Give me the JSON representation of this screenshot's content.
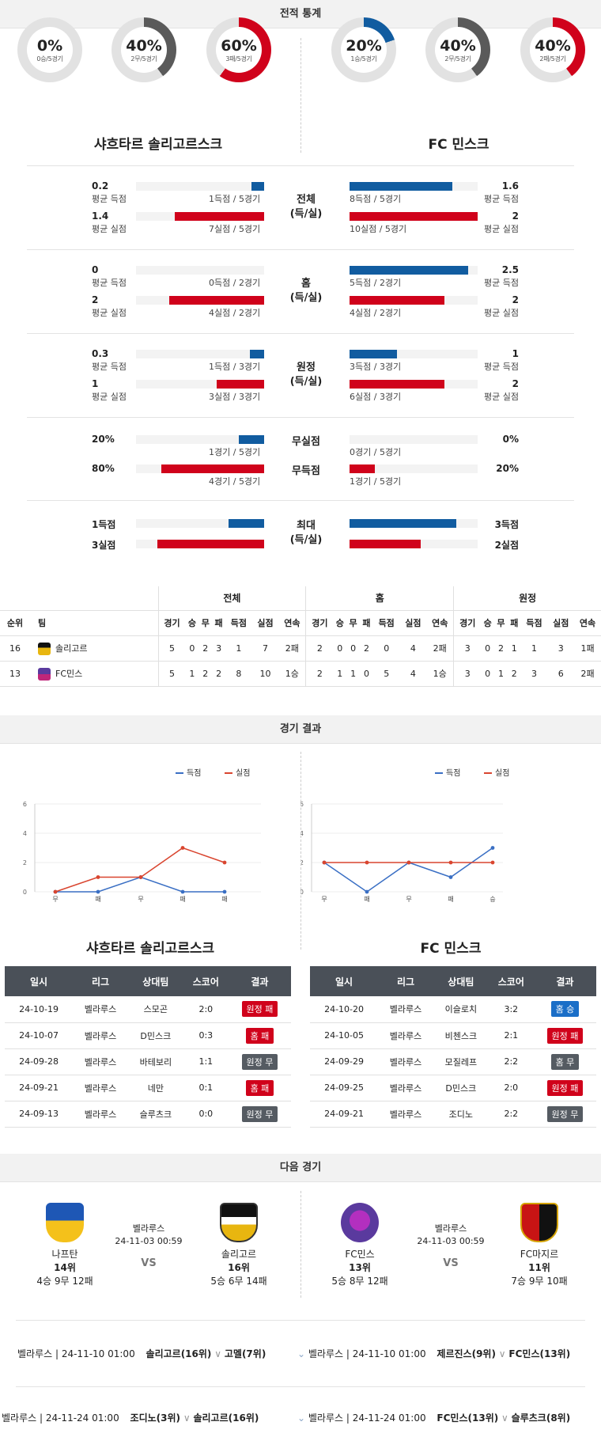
{
  "sections": {
    "stats": "전적 통계",
    "results": "경기 결과",
    "next": "다음 경기"
  },
  "colors": {
    "blue": "#115ca0",
    "red": "#d0021b",
    "gray": "#5a5a5a",
    "track": "#e2e2e2"
  },
  "left_team": {
    "name": "샤흐타르 솔리고르스크",
    "donuts": [
      {
        "pct": "0%",
        "sub": "0승/5경기",
        "value": 0,
        "color": "blue"
      },
      {
        "pct": "40%",
        "sub": "2무/5경기",
        "value": 40,
        "color": "gray"
      },
      {
        "pct": "60%",
        "sub": "3패/5경기",
        "value": 60,
        "color": "red"
      }
    ]
  },
  "right_team": {
    "name": "FC 민스크",
    "donuts": [
      {
        "pct": "20%",
        "sub": "1승/5경기",
        "value": 20,
        "color": "blue"
      },
      {
        "pct": "40%",
        "sub": "2무/5경기",
        "value": 40,
        "color": "gray"
      },
      {
        "pct": "40%",
        "sub": "2패/5경기",
        "value": 40,
        "color": "red"
      }
    ]
  },
  "stat_groups": [
    {
      "cat": "전체",
      "cat2": "(득/실)",
      "rows": [
        {
          "l_num": "0.2",
          "l_lbl": "평균 득점",
          "l_cnt": "1득점 / 5경기",
          "l_val": 0.2,
          "r_num": "1.6",
          "r_lbl": "평균 득점",
          "r_cnt": "8득점 / 5경기",
          "r_val": 1.6,
          "color": "blue",
          "max": 2
        },
        {
          "l_num": "1.4",
          "l_lbl": "평균 실점",
          "l_cnt": "7실점 / 5경기",
          "l_val": 1.4,
          "r_num": "2",
          "r_lbl": "평균 실점",
          "r_cnt": "10실점 / 5경기",
          "r_val": 2,
          "color": "red",
          "max": 2
        }
      ]
    },
    {
      "cat": "홈",
      "cat2": "(득/실)",
      "rows": [
        {
          "l_num": "0",
          "l_lbl": "평균 득점",
          "l_cnt": "0득점 / 2경기",
          "l_val": 0,
          "r_num": "2.5",
          "r_lbl": "평균 득점",
          "r_cnt": "5득점 / 2경기",
          "r_val": 2.5,
          "color": "blue",
          "max": 2.7
        },
        {
          "l_num": "2",
          "l_lbl": "평균 실점",
          "l_cnt": "4실점 / 2경기",
          "l_val": 2,
          "r_num": "2",
          "r_lbl": "평균 실점",
          "r_cnt": "4실점 / 2경기",
          "r_val": 2,
          "color": "red",
          "max": 2.7
        }
      ]
    },
    {
      "cat": "원정",
      "cat2": "(득/실)",
      "rows": [
        {
          "l_num": "0.3",
          "l_lbl": "평균 득점",
          "l_cnt": "1득점 / 3경기",
          "l_val": 0.3,
          "r_num": "1",
          "r_lbl": "평균 득점",
          "r_cnt": "3득점 / 3경기",
          "r_val": 1,
          "color": "blue",
          "max": 2.7
        },
        {
          "l_num": "1",
          "l_lbl": "평균 실점",
          "l_cnt": "3실점 / 3경기",
          "l_val": 1,
          "r_num": "2",
          "r_lbl": "평균 실점",
          "r_cnt": "6실점 / 3경기",
          "r_val": 2,
          "color": "red",
          "max": 2.7
        }
      ]
    }
  ],
  "clean_rows": [
    {
      "l_num": "20%",
      "l_cnt": "1경기 / 5경기",
      "l_val": 20,
      "cat": "무실점",
      "r_num": "0%",
      "r_cnt": "0경기 / 5경기",
      "r_val": 0,
      "color": "blue"
    },
    {
      "l_num": "80%",
      "l_cnt": "4경기 / 5경기",
      "l_val": 80,
      "cat": "무득점",
      "r_num": "20%",
      "r_cnt": "1경기 / 5경기",
      "r_val": 20,
      "color": "red"
    }
  ],
  "max_group": {
    "cat": "최대",
    "cat2": "(득/실)",
    "rows": [
      {
        "l_num": "1득점",
        "l_val": 1,
        "r_num": "3득점",
        "r_val": 3,
        "color": "blue"
      },
      {
        "l_num": "3실점",
        "l_val": 3,
        "r_num": "2실점",
        "r_val": 2,
        "color": "red"
      }
    ]
  },
  "standings": {
    "groups": [
      "전체",
      "홈",
      "원정"
    ],
    "cols": [
      "순위",
      "팀",
      "경기",
      "승",
      "무",
      "패",
      "득점",
      "실점",
      "연속"
    ],
    "rows": [
      {
        "rank": "16",
        "team": "솔리고르",
        "all": [
          "5",
          "0",
          "2",
          "3",
          "1",
          "7",
          "2패"
        ],
        "home": [
          "2",
          "0",
          "0",
          "2",
          "0",
          "4",
          "2패"
        ],
        "away": [
          "3",
          "0",
          "2",
          "1",
          "1",
          "3",
          "1패"
        ]
      },
      {
        "rank": "13",
        "team": "FC민스",
        "all": [
          "5",
          "1",
          "2",
          "2",
          "8",
          "10",
          "1승"
        ],
        "home": [
          "2",
          "1",
          "1",
          "0",
          "5",
          "4",
          "1승"
        ],
        "away": [
          "3",
          "0",
          "1",
          "2",
          "3",
          "6",
          "2패"
        ]
      }
    ]
  },
  "chart_data": [
    {
      "type": "line",
      "categories": [
        "무",
        "패",
        "무",
        "패",
        "패"
      ],
      "ylim": [
        0,
        6
      ],
      "yticks": [
        "0",
        "2",
        "4",
        "6"
      ],
      "series": [
        {
          "name": "득점",
          "values": [
            0,
            0,
            1,
            0,
            0
          ]
        },
        {
          "name": "실점",
          "values": [
            0,
            1,
            1,
            3,
            2
          ]
        }
      ],
      "legend": "top-right"
    },
    {
      "type": "line",
      "categories": [
        "무",
        "패",
        "무",
        "패",
        "승"
      ],
      "ylim": [
        0,
        6
      ],
      "yticks": [
        "0",
        "2",
        "4",
        "6"
      ],
      "series": [
        {
          "name": "득점",
          "values": [
            2,
            0,
            2,
            1,
            3
          ]
        },
        {
          "name": "실점",
          "values": [
            2,
            2,
            2,
            2,
            2
          ]
        }
      ],
      "legend": "top-right"
    }
  ],
  "results": {
    "headers": [
      "일시",
      "리그",
      "상대팀",
      "스코어",
      "결과"
    ],
    "left": [
      {
        "date": "24-10-19",
        "league": "벨라루스",
        "opp": "스모곤",
        "score": "2:0",
        "result": "원정 패",
        "color": "red"
      },
      {
        "date": "24-10-07",
        "league": "벨라루스",
        "opp": "D민스크",
        "score": "0:3",
        "result": "홈 패",
        "color": "red"
      },
      {
        "date": "24-09-28",
        "league": "벨라루스",
        "opp": "바테보리",
        "score": "1:1",
        "result": "원정 무",
        "color": "gray"
      },
      {
        "date": "24-09-21",
        "league": "벨라루스",
        "opp": "네만",
        "score": "0:1",
        "result": "홈 패",
        "color": "red"
      },
      {
        "date": "24-09-13",
        "league": "벨라루스",
        "opp": "슬루츠크",
        "score": "0:0",
        "result": "원정 무",
        "color": "gray"
      }
    ],
    "right": [
      {
        "date": "24-10-20",
        "league": "벨라루스",
        "opp": "이슬로치",
        "score": "3:2",
        "result": "홈 승",
        "color": "blue"
      },
      {
        "date": "24-10-05",
        "league": "벨라루스",
        "opp": "비첸스크",
        "score": "2:1",
        "result": "원정 패",
        "color": "red"
      },
      {
        "date": "24-09-29",
        "league": "벨라루스",
        "opp": "모질레프",
        "score": "2:2",
        "result": "홈 무",
        "color": "gray"
      },
      {
        "date": "24-09-25",
        "league": "벨라루스",
        "opp": "D민스크",
        "score": "2:0",
        "result": "원정 패",
        "color": "red"
      },
      {
        "date": "24-09-21",
        "league": "벨라루스",
        "opp": "조디노",
        "score": "2:2",
        "result": "원정 무",
        "color": "gray"
      }
    ]
  },
  "next": {
    "left": {
      "home": {
        "name": "나프탄",
        "rank": "14위",
        "rec": "4승 9무 12패"
      },
      "league": "벨라루스",
      "dt": "24-11-03 00:59",
      "vs": "VS",
      "away": {
        "name": "솔리고르",
        "rank": "16위",
        "rec": "5승 6무 14패"
      }
    },
    "right": {
      "home": {
        "name": "FC민스",
        "rank": "13위",
        "rec": "5승 8무 12패"
      },
      "league": "벨라루스",
      "dt": "24-11-03 00:59",
      "vs": "VS",
      "away": {
        "name": "FC마지르",
        "rank": "11위",
        "rec": "7승 9무 10패"
      }
    }
  },
  "upcoming": {
    "left": [
      {
        "info": "벨라루스 | 24-11-10 01:00",
        "home": "솔리고르(16위)",
        "away": "고멜(7위)"
      },
      {
        "info": "벨라루스 | 24-11-24 01:00",
        "home": "조디노(3위)",
        "away": "솔리고르(16위)"
      }
    ],
    "right": [
      {
        "info": "벨라루스 | 24-11-10 01:00",
        "home": "제르진스(9위)",
        "away": "FC민스(13위)"
      },
      {
        "info": "벨라루스 | 24-11-24 01:00",
        "home": "FC민스(13위)",
        "away": "슬루츠크(8위)"
      }
    ]
  }
}
